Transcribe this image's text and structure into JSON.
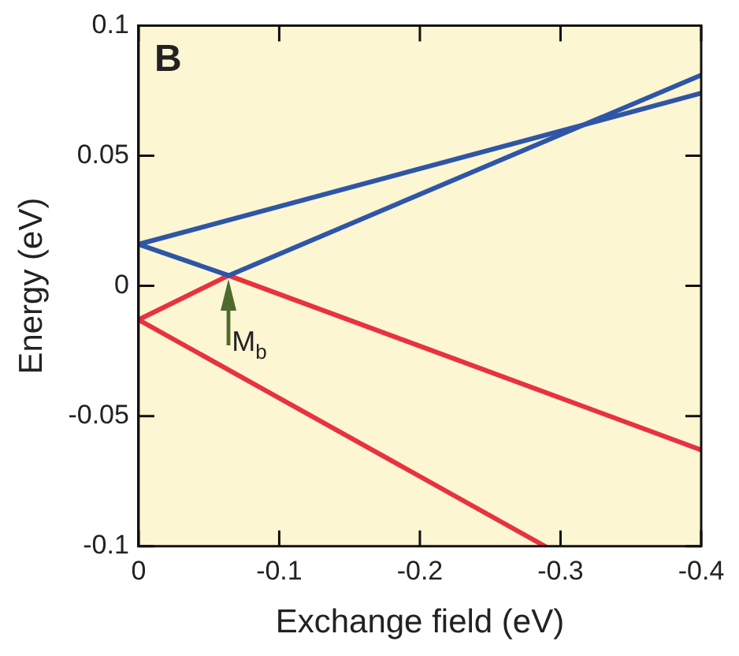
{
  "chart_data": {
    "type": "line",
    "xlabel": "Exchange field (eV)",
    "ylabel": "Energy (eV)",
    "xlim": [
      0,
      -0.4
    ],
    "xticks": [
      0,
      -0.1,
      -0.2,
      -0.3,
      -0.4
    ],
    "ylim": [
      -0.1,
      0.1
    ],
    "yticks": [
      -0.1,
      -0.05,
      0,
      0.05,
      0.1
    ],
    "legend": false,
    "marker": "none",
    "line_style": "solid",
    "series": [
      {
        "color": "#2f56a6",
        "x": [
          0,
          -0.4
        ],
        "values": [
          0.016,
          0.074
        ]
      },
      {
        "color": "#2f56a6",
        "x": [
          0,
          -0.064,
          -0.4
        ],
        "values": [
          0.016,
          0.004,
          0.081
        ]
      },
      {
        "color": "#e8323e",
        "x": [
          0,
          -0.064,
          -0.4
        ],
        "values": [
          -0.013,
          0.004,
          -0.063
        ]
      },
      {
        "color": "#e8323e",
        "x": [
          0,
          -0.289
        ],
        "values": [
          -0.013,
          -0.1
        ]
      }
    ],
    "annotations": [
      "B",
      {
        "text": "M$_{b}$",
        "x": -0.064,
        "y": 0.004
      }
    ]
  }
}
